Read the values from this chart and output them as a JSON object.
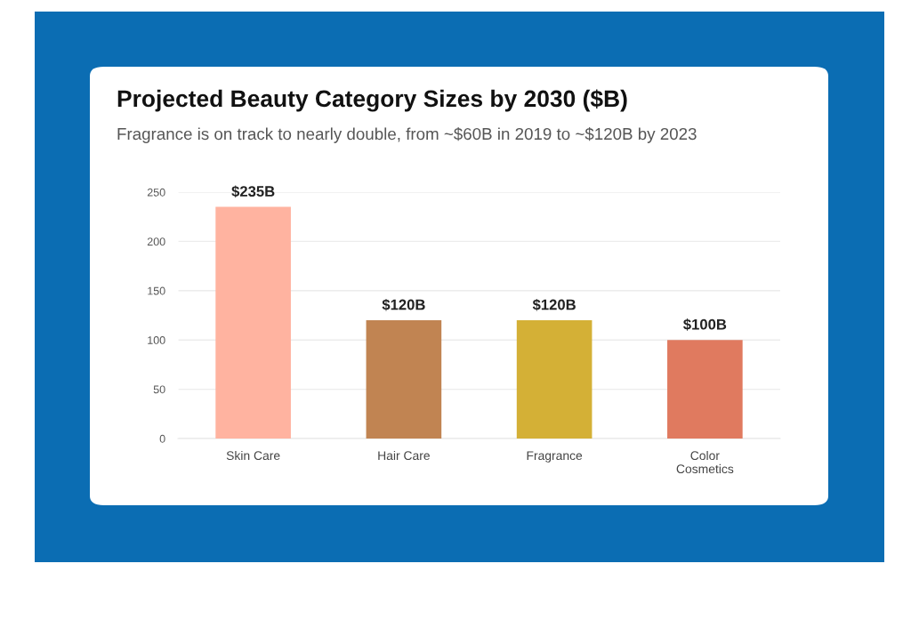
{
  "chart_data": {
    "type": "bar",
    "title": "Projected Beauty Category Sizes by 2030 ($B)",
    "subtitle": "Fragrance is on track to nearly double, from ~$60B in 2019 to ~$120B by 2023",
    "categories": [
      "Skin Care",
      "Hair Care",
      "Fragrance",
      "Color\nCosmetics"
    ],
    "values": [
      235,
      120,
      120,
      100
    ],
    "colors": [
      "#ffb3a0",
      "#c18452",
      "#d4b036",
      "#e07a5f"
    ],
    "value_labels": [
      "$235B",
      "$120B",
      "$120B",
      "$100B"
    ],
    "ylim": [
      0,
      250
    ],
    "yticks": [
      0,
      50,
      100,
      150,
      200,
      250
    ],
    "grid": "y"
  }
}
